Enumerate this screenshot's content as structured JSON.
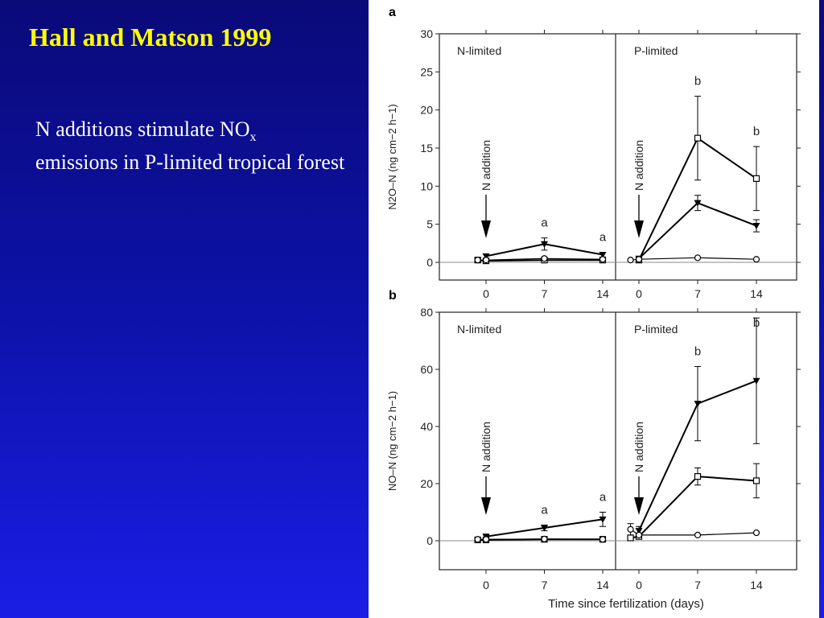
{
  "slide": {
    "title": "Hall and Matson 1999",
    "body_before_sub": "N additions stimulate NO",
    "body_sub": "x",
    "body_after": "emissions in P-limited tropical forest",
    "colors": {
      "background": "#0d12a8",
      "title": "#ffff00",
      "body": "#ffffff"
    }
  },
  "chart_data": [
    {
      "type": "line",
      "panel_label": "a",
      "ylabel": "N2O–N (ng cm−2 h−1)",
      "yticks": [
        0,
        5,
        10,
        15,
        20,
        25,
        30
      ],
      "ylim": [
        -2.5,
        30
      ],
      "xticks": [
        0,
        7,
        14
      ],
      "grid": false,
      "groups": [
        {
          "name": "N-limited",
          "annotation": "N addition",
          "letters": [
            {
              "x": 7,
              "text": "a"
            },
            {
              "x": 14,
              "text": "a"
            }
          ],
          "series": [
            {
              "marker": "triangle",
              "points": [
                {
                  "x": 0,
                  "y": 0.8,
                  "err": 0.3
                },
                {
                  "x": 7,
                  "y": 2.4,
                  "err": 0.8
                },
                {
                  "x": 14,
                  "y": 1.0,
                  "err": 0.3
                }
              ]
            },
            {
              "marker": "square",
              "points": [
                {
                  "x": -1,
                  "y": 0.3
                },
                {
                  "x": 0,
                  "y": 0.2
                },
                {
                  "x": 7,
                  "y": 0.3
                },
                {
                  "x": 14,
                  "y": 0.3
                }
              ]
            },
            {
              "marker": "circle",
              "points": [
                {
                  "x": -1,
                  "y": 0.3
                },
                {
                  "x": 0,
                  "y": 0.3
                },
                {
                  "x": 7,
                  "y": 0.5
                },
                {
                  "x": 14,
                  "y": 0.4
                }
              ]
            }
          ]
        },
        {
          "name": "P-limited",
          "annotation": "N addition",
          "letters": [
            {
              "x": 7,
              "text": "b"
            },
            {
              "x": 14,
              "text": "b"
            }
          ],
          "series": [
            {
              "marker": "square",
              "points": [
                {
                  "x": 0,
                  "y": 0.3
                },
                {
                  "x": 7,
                  "y": 16.3,
                  "err": 5.5
                },
                {
                  "x": 14,
                  "y": 11.0,
                  "err": 4.2
                }
              ]
            },
            {
              "marker": "triangle",
              "points": [
                {
                  "x": 0,
                  "y": 0.5
                },
                {
                  "x": 7,
                  "y": 7.8,
                  "err": 1.0
                },
                {
                  "x": 14,
                  "y": 4.8,
                  "err": 0.8
                }
              ]
            },
            {
              "marker": "circle",
              "points": [
                {
                  "x": -1,
                  "y": 0.3
                },
                {
                  "x": 0,
                  "y": 0.4
                },
                {
                  "x": 7,
                  "y": 0.6
                },
                {
                  "x": 14,
                  "y": 0.4
                }
              ]
            }
          ]
        }
      ]
    },
    {
      "type": "line",
      "panel_label": "b",
      "ylabel": "NO–N (ng cm−2 h−1)",
      "xlabel": "Time since fertilization (days)",
      "yticks": [
        0,
        20,
        40,
        60,
        80
      ],
      "ylim": [
        -10,
        80
      ],
      "xticks": [
        0,
        7,
        14
      ],
      "grid": false,
      "groups": [
        {
          "name": "N-limited",
          "annotation": "N addition",
          "letters": [
            {
              "x": 7,
              "text": "a"
            },
            {
              "x": 14,
              "text": "a"
            }
          ],
          "series": [
            {
              "marker": "triangle",
              "points": [
                {
                  "x": 0,
                  "y": 1.5,
                  "err": 0.5
                },
                {
                  "x": 7,
                  "y": 4.5,
                  "err": 1.0
                },
                {
                  "x": 14,
                  "y": 7.5,
                  "err": 2.5
                }
              ]
            },
            {
              "marker": "square",
              "points": [
                {
                  "x": -1,
                  "y": 0.3
                },
                {
                  "x": 0,
                  "y": 0.3
                },
                {
                  "x": 7,
                  "y": 0.5
                },
                {
                  "x": 14,
                  "y": 0.5
                }
              ]
            },
            {
              "marker": "circle",
              "points": [
                {
                  "x": -1,
                  "y": 0.5
                },
                {
                  "x": 0,
                  "y": 0.5
                },
                {
                  "x": 7,
                  "y": 0.6
                },
                {
                  "x": 14,
                  "y": 0.5
                }
              ]
            }
          ]
        },
        {
          "name": "P-limited",
          "annotation": "N addition",
          "letters": [
            {
              "x": 7,
              "text": "b"
            },
            {
              "x": 14,
              "text": "b"
            }
          ],
          "series": [
            {
              "marker": "triangle",
              "points": [
                {
                  "x": 0,
                  "y": 3.5,
                  "err": 1.5
                },
                {
                  "x": 7,
                  "y": 48.0,
                  "err": 13.0
                },
                {
                  "x": 14,
                  "y": 56.0,
                  "err": 22.0
                }
              ]
            },
            {
              "marker": "square",
              "points": [
                {
                  "x": -1,
                  "y": 1.0
                },
                {
                  "x": 0,
                  "y": 1.5
                },
                {
                  "x": 7,
                  "y": 22.5,
                  "err": 3.0
                },
                {
                  "x": 14,
                  "y": 21.0,
                  "err": 6.0
                }
              ]
            },
            {
              "marker": "circle",
              "points": [
                {
                  "x": -1,
                  "y": 4.0,
                  "err": 2.0
                },
                {
                  "x": 0,
                  "y": 2.0
                },
                {
                  "x": 7,
                  "y": 2.0
                },
                {
                  "x": 14,
                  "y": 2.8
                }
              ]
            }
          ]
        }
      ]
    }
  ]
}
